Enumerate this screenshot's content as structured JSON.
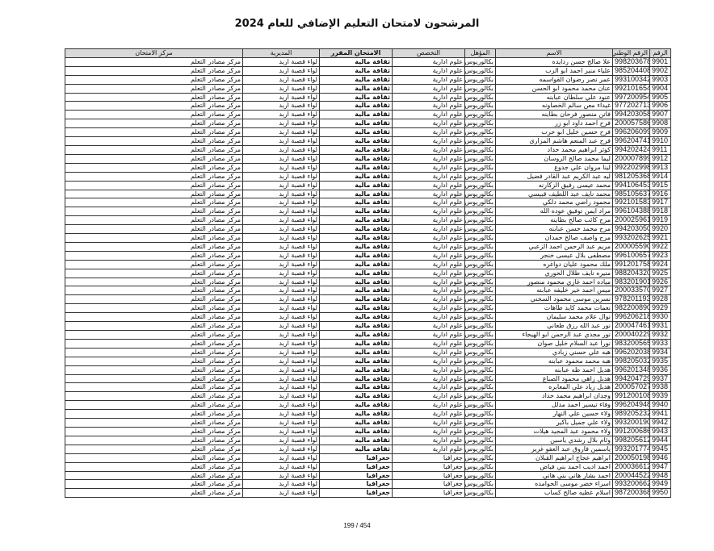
{
  "title": "المرشحون لامتحان التعليم الإضافي للعام 2024",
  "headers": {
    "num": "الرقم",
    "nid": "الرقم الوطني",
    "name": "الاسم",
    "qual": "المؤهل",
    "spec": "التخصص",
    "exam": "الامتحان المقرر",
    "dir": "المديرية",
    "center": "مركز الامتحان"
  },
  "rows": [
    [
      "9901",
      "9982036788",
      "علا صالح حسن ردايده",
      "بكالوريوس",
      "علوم ادارية",
      "ثقافة مالية",
      "لواء قصبة اربد",
      "مركز مصادر التعلم"
    ],
    [
      "9902",
      "9852044087",
      "علياء منير احمد ابو الرب",
      "بكالوريوس",
      "علوم ادارية",
      "ثقافة مالية",
      "لواء قصبة اربد",
      "مركز مصادر التعلم"
    ],
    [
      "9903",
      "9931003423",
      "عمر نصر رضوان القواسمه",
      "بكالوريوس",
      "علوم ادارية",
      "ثقافة مالية",
      "لواء قصبة اربد",
      "مركز مصادر التعلم"
    ],
    [
      "9904",
      "9921016548",
      "عنان محمد محمود ابو الحسن",
      "بكالوريوس",
      "علوم ادارية",
      "ثقافة مالية",
      "لواء قصبة اربد",
      "مركز مصادر التعلم"
    ],
    [
      "9905",
      "9972009549",
      "عنود علي سلطان عبابنه",
      "بكالوريوس",
      "علوم ادارية",
      "ثقافة مالية",
      "لواء قصبة اربد",
      "مركز مصادر التعلم"
    ],
    [
      "9906",
      "9772027139",
      "غيداء معن سالم الخصاونه",
      "بكالوريوس",
      "علوم ادارية",
      "ثقافة مالية",
      "لواء قصبة اربد",
      "مركز مصادر التعلم"
    ],
    [
      "9907",
      "9942030581",
      "فاتن منصور فرحان بطاينه",
      "بكالوريوس",
      "علوم ادارية",
      "ثقافة مالية",
      "لواء قصبة اربد",
      "مركز مصادر التعلم"
    ],
    [
      "9908",
      "2000575868",
      "فرح احمد داود ابو زر",
      "بكالوريوس",
      "علوم ادارية",
      "ثقافة مالية",
      "لواء قصبة اربد",
      "مركز مصادر التعلم"
    ],
    [
      "9909",
      "9962060995",
      "فرح حسين خليل ابو حرب",
      "بكالوريوس",
      "علوم ادارية",
      "ثقافة مالية",
      "لواء قصبة اربد",
      "مركز مصادر التعلم"
    ],
    [
      "9910",
      "9962047419",
      "فرح عبد المنعم هاشم المزارى",
      "بكالوريوس",
      "علوم ادارية",
      "ثقافة مالية",
      "لواء قصبة اربد",
      "مركز مصادر التعلم"
    ],
    [
      "9911",
      "9942024245",
      "كوثر ابراهيم محمد حداد",
      "بكالوريوس",
      "علوم ادارية",
      "ثقافة مالية",
      "لواء قصبة اربد",
      "مركز مصادر التعلم"
    ],
    [
      "9912",
      "2000078999",
      "ليما محمد صالح الروسان",
      "بكالوريوس",
      "علوم ادارية",
      "ثقافة مالية",
      "لواء قصبة اربد",
      "مركز مصادر التعلم"
    ],
    [
      "9913",
      "9922029983",
      "لينا مروان علي جدوع",
      "بكالوريوس",
      "علوم ادارية",
      "ثقافة مالية",
      "لواء قصبة اربد",
      "مركز مصادر التعلم"
    ],
    [
      "9914",
      "9812053687",
      "ليه عبد الكريم عبد القادر فضيل",
      "بكالوريوس",
      "علوم ادارية",
      "ثقافة مالية",
      "لواء قصبة اربد",
      "مركز مصادر التعلم"
    ],
    [
      "9915",
      "9941064538",
      "محمد عيسى رفيق الزكارنه",
      "بكالوريوس",
      "علوم ادارية",
      "ثقافة مالية",
      "لواء قصبة اربد",
      "مركز مصادر التعلم"
    ],
    [
      "9916",
      "9851056378",
      "محمد نايف عبد اللطيف قبيسي",
      "بكالوريوس",
      "علوم ادارية",
      "ثقافة مالية",
      "لواء قصبة اربد",
      "مركز مصادر التعلم"
    ],
    [
      "9917",
      "9921015830",
      "محمود راضي محمد دلكي",
      "بكالوريوس",
      "علوم ادارية",
      "ثقافة مالية",
      "لواء قصبة اربد",
      "مركز مصادر التعلم"
    ],
    [
      "9918",
      "9961043881",
      "مراد ايمن توفيق عوده الله",
      "بكالوريوس",
      "علوم ادارية",
      "ثقافة مالية",
      "لواء قصبة اربد",
      "مركز مصادر التعلم"
    ],
    [
      "9919",
      "2000259612",
      "مرح كائب صالح بطاينه",
      "بكالوريوس",
      "علوم ادارية",
      "ثقافة مالية",
      "لواء قصبة اربد",
      "مركز مصادر التعلم"
    ],
    [
      "9920",
      "9942030505",
      "مرح محمد حسن عبابنه",
      "بكالوريوس",
      "علوم ادارية",
      "ثقافة مالية",
      "لواء قصبة اربد",
      "مركز مصادر التعلم"
    ],
    [
      "9921",
      "9932026252",
      "مرح واصف صالح حمدان",
      "بكالوريوس",
      "علوم ادارية",
      "ثقافة مالية",
      "لواء قصبة اربد",
      "مركز مصادر التعلم"
    ],
    [
      "9922",
      "2000055903",
      "مريم عبد الرحمن احمد الزعبي",
      "بكالوريوس",
      "علوم ادارية",
      "ثقافة مالية",
      "لواء قصبة اربد",
      "مركز مصادر التعلم"
    ],
    [
      "9923",
      "9961006572",
      "مصطفى بلال عيسى خنجر",
      "بكالوريوس",
      "علوم ادارية",
      "ثقافة مالية",
      "لواء قصبة اربد",
      "مركز مصادر التعلم"
    ],
    [
      "9924",
      "9912017583",
      "ملك محمود عليان دواغره",
      "بكالوريوس",
      "علوم ادارية",
      "ثقافة مالية",
      "لواء قصبة اربد",
      "مركز مصادر التعلم"
    ],
    [
      "9925",
      "9882043200",
      "منيره نايف طلال الحوري",
      "بكالوريوس",
      "علوم ادارية",
      "ثقافة مالية",
      "لواء قصبة اربد",
      "مركز مصادر التعلم"
    ],
    [
      "9926",
      "9832019017",
      "مياده احمد غازي محمود منصور",
      "بكالوريوس",
      "علوم ادارية",
      "ثقافة مالية",
      "لواء قصبة اربد",
      "مركز مصادر التعلم"
    ],
    [
      "9927",
      "2000335703",
      "ميس احمد خير خليفه عبابنه",
      "بكالوريوس",
      "علوم ادارية",
      "ثقافة مالية",
      "لواء قصبة اربد",
      "مركز مصادر التعلم"
    ],
    [
      "9928",
      "9782011937",
      "نسرين موسى محمود السخني",
      "بكالوريوس",
      "علوم ادارية",
      "ثقافة مالية",
      "لواء قصبة اربد",
      "مركز مصادر التعلم"
    ],
    [
      "9929",
      "9822008908",
      "نعمات محمد كايد طاهات",
      "بكالوريوس",
      "علوم ادارية",
      "ثقافة مالية",
      "لواء قصبة اربد",
      "مركز مصادر التعلم"
    ],
    [
      "9930",
      "9962062182",
      "نوال علام محمد سليمان",
      "بكالوريوس",
      "علوم ادارية",
      "ثقافة مالية",
      "لواء قصبة اربد",
      "مركز مصادر التعلم"
    ],
    [
      "9931",
      "2000474616",
      "نور عبد الله رزق طعاني",
      "بكالوريوس",
      "علوم ادارية",
      "ثقافة مالية",
      "لواء قصبة اربد",
      "مركز مصادر التعلم"
    ],
    [
      "9932",
      "2000402293",
      "نور مجدي عبد الرحمن ابو الهيجاء",
      "بكالوريوس",
      "علوم ادارية",
      "ثقافة مالية",
      "لواء قصبة اربد",
      "مركز مصادر التعلم"
    ],
    [
      "9933",
      "9832005650",
      "نورا عبد السلام خليل صوان",
      "بكالوريوس",
      "علوم ادارية",
      "ثقافة مالية",
      "لواء قصبة اربد",
      "مركز مصادر التعلم"
    ],
    [
      "9934",
      "9962020388",
      "هبه علي حسني زبادي",
      "بكالوريوس",
      "علوم ادارية",
      "ثقافة مالية",
      "لواء قصبة اربد",
      "مركز مصادر التعلم"
    ],
    [
      "9935",
      "9982050328",
      "هبه محمد محمود عبابنه",
      "بكالوريوس",
      "علوم ادارية",
      "ثقافة مالية",
      "لواء قصبة اربد",
      "مركز مصادر التعلم"
    ],
    [
      "9936",
      "9962013483",
      "هديل احمد طه عبابنه",
      "بكالوريوس",
      "علوم ادارية",
      "ثقافة مالية",
      "لواء قصبة اربد",
      "مركز مصادر التعلم"
    ],
    [
      "9937",
      "9942047294",
      "هديل زاهي محمود الصباغ",
      "بكالوريوس",
      "علوم ادارية",
      "ثقافة مالية",
      "لواء قصبة اربد",
      "مركز مصادر التعلم"
    ],
    [
      "9938",
      "2000570273",
      "هديل زياد علي المعابره",
      "بكالوريوس",
      "علوم ادارية",
      "ثقافة مالية",
      "لواء قصبة اربد",
      "مركز مصادر التعلم"
    ],
    [
      "9939",
      "9912001081",
      "وجدان ابراهيم محمد حداد",
      "بكالوريوس",
      "علوم ادارية",
      "ثقافة مالية",
      "لواء قصبة اربد",
      "مركز مصادر التعلم"
    ],
    [
      "9940",
      "9962049482",
      "وفاء تيسير احمد مدلل",
      "بكالوريوس",
      "علوم ادارية",
      "ثقافة مالية",
      "لواء قصبة اربد",
      "مركز مصادر التعلم"
    ],
    [
      "9941",
      "9892052323",
      "ولاء حسين علي النهار",
      "بكالوريوس",
      "علوم ادارية",
      "ثقافة مالية",
      "لواء قصبة اربد",
      "مركز مصادر التعلم"
    ],
    [
      "9942",
      "9932001901",
      "ولاء علي جميل باكير",
      "بكالوريوس",
      "علوم ادارية",
      "ثقافة مالية",
      "لواء قصبة اربد",
      "مركز مصادر التعلم"
    ],
    [
      "9943",
      "9912006864",
      "ولاء محمود عبد المجيد هيلات",
      "بكالوريوس",
      "علوم ادارية",
      "ثقافة مالية",
      "لواء قصبة اربد",
      "مركز مصادر التعلم"
    ],
    [
      "9944",
      "9982056128",
      "وئام بلال رشدي ياسين",
      "بكالوريوس",
      "علوم ادارية",
      "ثقافة مالية",
      "لواء قصبة اربد",
      "مركز مصادر التعلم"
    ],
    [
      "9945",
      "9932017746",
      "ياسمين فاروق عبد العفو غرير",
      "بكالوريوس",
      "علوم ادارية",
      "ثقافة مالية",
      "لواء قصبة اربد",
      "مركز مصادر التعلم"
    ],
    [
      "9946",
      "2000501988",
      "ابراهيم عجاج ابراهيم القبلان",
      "بكالوريوس",
      "جغرافيا",
      "جغرافيا",
      "لواء قصبة اربد",
      "مركز مصادر التعلم"
    ],
    [
      "9947",
      "2000366121",
      "احمد اديب احمد بني فياض",
      "بكالوريوس",
      "جغرافيا",
      "جغرافيا",
      "لواء قصبة اربد",
      "مركز مصادر التعلم"
    ],
    [
      "9948",
      "2000445220",
      "احمد بشار هاني بني هاني",
      "بكالوريوس",
      "جغرافيا",
      "جغرافيا",
      "لواء قصبة اربد",
      "مركز مصادر التعلم"
    ],
    [
      "9949",
      "9932006624",
      "اسراء خضر موسى الحوامده",
      "بكالوريوس",
      "جغرافيا",
      "جغرافيا",
      "لواء قصبة اربد",
      "مركز مصادر التعلم"
    ],
    [
      "9950",
      "9872003685",
      "اسلام عطيه صالح كساب",
      "بكالوريوس",
      "جغرافيا",
      "جغرافيا",
      "لواء قصبة اربد",
      "مركز مصادر التعلم"
    ]
  ],
  "pager": "199 / 454"
}
